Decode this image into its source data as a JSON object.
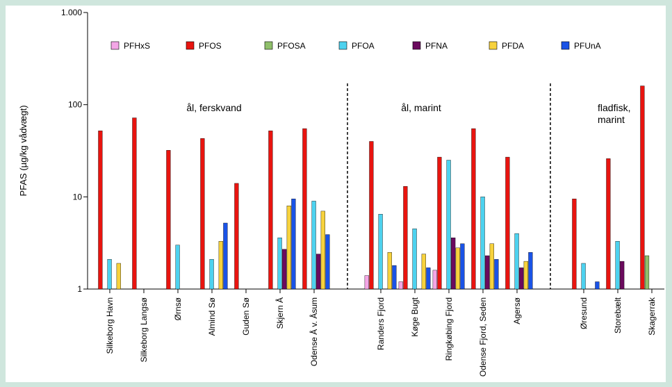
{
  "chart_data": {
    "type": "bar",
    "y_scale": "log",
    "ylim": [
      1,
      1000
    ],
    "yticks": [
      {
        "value": 1,
        "label": "1"
      },
      {
        "value": 10,
        "label": "10"
      },
      {
        "value": 100,
        "label": "100"
      },
      {
        "value": 1000,
        "label": "1.000"
      }
    ],
    "ylabel": "PFAS (µg/kg vådvægt)",
    "legend_position": "top",
    "categories": [
      "Silkeborg Havn",
      "Silkeborg Langsø",
      "Ørnsø",
      "Almind Sø",
      "Guden Sø",
      "Skjern Å",
      "Odense Å v. Åsum",
      "Randers Fjord",
      "Køge Bugt",
      "Ringkøbing Fjord",
      "Odense Fjord, Seden",
      "Agersø",
      "Øresund",
      "Storebælt",
      "Skagerrak"
    ],
    "groups": [
      {
        "label": "ål, ferskvand",
        "categories": [
          0,
          1,
          2,
          3,
          4,
          5,
          6
        ]
      },
      {
        "label": "ål, marint",
        "categories": [
          7,
          8,
          9,
          10,
          11
        ]
      },
      {
        "label": "fladfisk,\nmarint",
        "categories": [
          12,
          13,
          14
        ]
      }
    ],
    "series": [
      {
        "name": "PFHxS",
        "color": "#f4a6e6",
        "values": [
          null,
          null,
          null,
          null,
          null,
          null,
          null,
          1.4,
          1.2,
          1.6,
          null,
          null,
          null,
          null,
          null
        ]
      },
      {
        "name": "PFOS",
        "color": "#e8140f",
        "values": [
          52,
          72,
          32,
          43,
          14,
          52,
          55,
          40,
          13,
          27,
          55,
          27,
          9.5,
          26,
          160
        ]
      },
      {
        "name": "PFOSA",
        "color": "#8fbf6a",
        "values": [
          null,
          null,
          null,
          null,
          null,
          null,
          null,
          null,
          null,
          null,
          null,
          null,
          null,
          null,
          2.3
        ]
      },
      {
        "name": "PFOA",
        "color": "#4dd2ef",
        "values": [
          2.1,
          null,
          3.0,
          2.1,
          null,
          3.6,
          9.0,
          6.5,
          4.5,
          25,
          10,
          4.0,
          1.9,
          3.3,
          null
        ]
      },
      {
        "name": "PFNA",
        "color": "#6b0a5e",
        "values": [
          null,
          null,
          null,
          null,
          null,
          2.7,
          2.4,
          null,
          null,
          3.6,
          2.3,
          1.7,
          null,
          2.0,
          null
        ]
      },
      {
        "name": "PFDA",
        "color": "#f7d23d",
        "values": [
          1.9,
          null,
          null,
          3.3,
          null,
          8.0,
          7.0,
          2.5,
          2.4,
          2.8,
          3.1,
          2.0,
          null,
          null,
          null
        ]
      },
      {
        "name": "PFUnA",
        "color": "#1a53e6",
        "values": [
          null,
          null,
          null,
          5.2,
          null,
          9.5,
          3.9,
          1.8,
          1.7,
          3.1,
          2.1,
          2.5,
          1.2,
          null,
          null
        ]
      }
    ]
  }
}
